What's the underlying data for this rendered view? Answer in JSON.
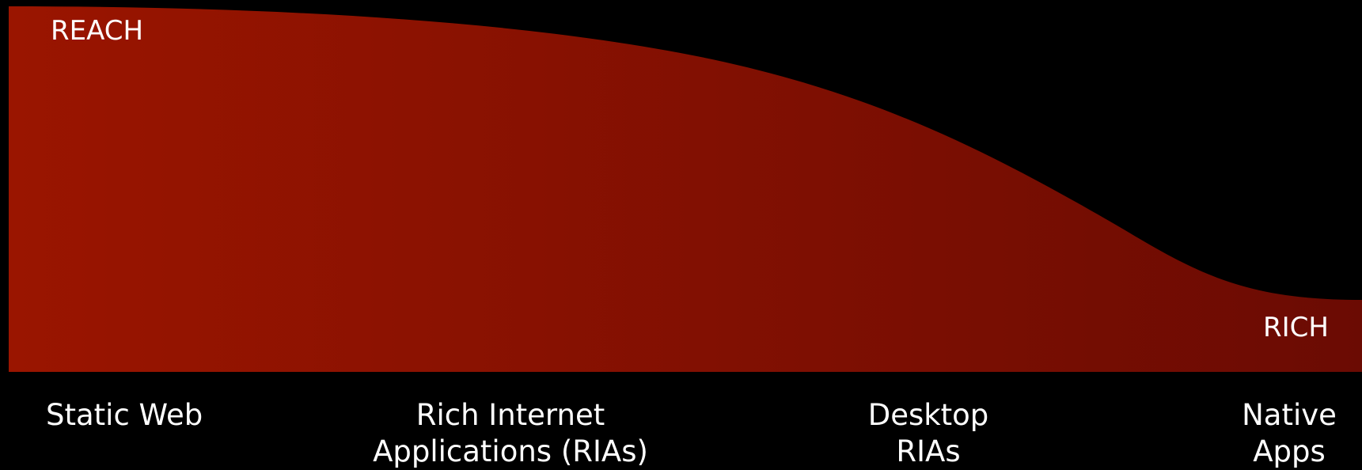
{
  "colors": {
    "background": "#000000",
    "fill_left": "#9a1500",
    "fill_right": "#6b0b03",
    "text": "#ffffff"
  },
  "diagram": {
    "top_label": "REACH",
    "bottom_label": "RICH",
    "stages": [
      {
        "lines": [
          "Static Web"
        ]
      },
      {
        "lines": [
          "Rich Internet",
          "Applications (RIAs)"
        ]
      },
      {
        "lines": [
          "Desktop",
          "RIAs"
        ]
      },
      {
        "lines": [
          "Native",
          "Apps"
        ]
      }
    ]
  }
}
